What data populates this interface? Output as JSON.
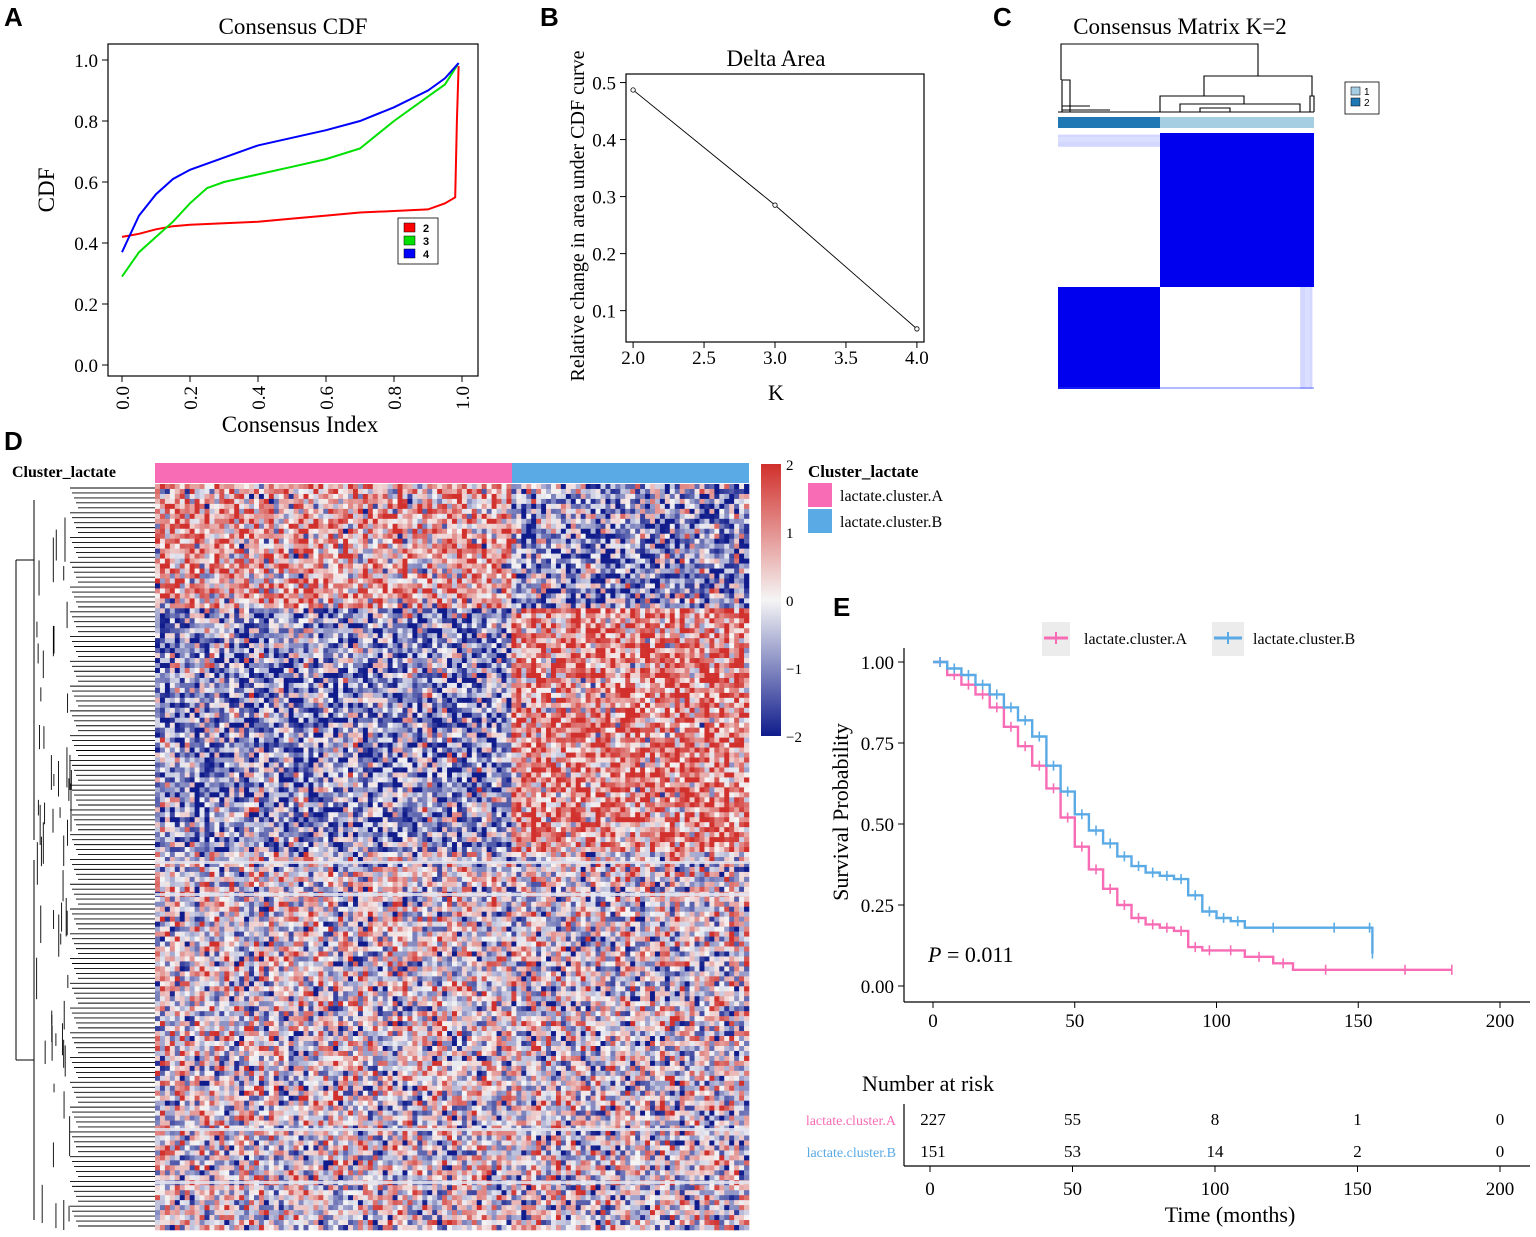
{
  "panels": {
    "A": {
      "letter": "A"
    },
    "B": {
      "letter": "B"
    },
    "C": {
      "letter": "C"
    },
    "D": {
      "letter": "D"
    },
    "E": {
      "letter": "E"
    }
  },
  "colors": {
    "k2": "#ff0000",
    "k3": "#00e000",
    "k4": "#0000ff",
    "cluster_a": "#f76cb5",
    "cluster_b": "#5aaae6",
    "heat_high": "#d1302c",
    "heat_low": "#101c8c",
    "heat_mid": "#f5f5f5",
    "consensus_blue": "#0000ee",
    "c1": "#a6cee3",
    "c2": "#1f78b4"
  },
  "chart_data": [
    {
      "id": "A",
      "type": "line",
      "title": "Consensus CDF",
      "xlabel": "Consensus Index",
      "ylabel": "CDF",
      "xlim": [
        0,
        1
      ],
      "ylim": [
        0,
        1
      ],
      "xticks": [
        "0.0",
        "0.2",
        "0.4",
        "0.6",
        "0.8",
        "1.0"
      ],
      "yticks": [
        "0.0",
        "0.2",
        "0.4",
        "0.6",
        "0.8",
        "1.0"
      ],
      "legend": {
        "position": "right",
        "labels": [
          "2",
          "3",
          "4"
        ]
      },
      "series": [
        {
          "name": "2",
          "color": "#ff0000",
          "x": [
            0.0,
            0.05,
            0.1,
            0.15,
            0.2,
            0.3,
            0.4,
            0.5,
            0.6,
            0.7,
            0.8,
            0.9,
            0.95,
            0.98,
            0.985,
            0.99
          ],
          "y": [
            0.42,
            0.43,
            0.445,
            0.455,
            0.46,
            0.465,
            0.47,
            0.48,
            0.49,
            0.5,
            0.505,
            0.51,
            0.53,
            0.55,
            0.8,
            0.98
          ]
        },
        {
          "name": "3",
          "color": "#00e000",
          "x": [
            0.0,
            0.05,
            0.1,
            0.15,
            0.2,
            0.25,
            0.3,
            0.4,
            0.5,
            0.6,
            0.7,
            0.8,
            0.9,
            0.95,
            0.99
          ],
          "y": [
            0.29,
            0.37,
            0.42,
            0.47,
            0.53,
            0.58,
            0.6,
            0.625,
            0.65,
            0.675,
            0.71,
            0.8,
            0.88,
            0.92,
            0.99
          ]
        },
        {
          "name": "4",
          "color": "#0000ff",
          "x": [
            0.0,
            0.05,
            0.1,
            0.15,
            0.2,
            0.3,
            0.4,
            0.5,
            0.6,
            0.7,
            0.8,
            0.9,
            0.95,
            0.99
          ],
          "y": [
            0.37,
            0.49,
            0.56,
            0.61,
            0.64,
            0.68,
            0.72,
            0.745,
            0.77,
            0.8,
            0.845,
            0.9,
            0.94,
            0.99
          ]
        }
      ]
    },
    {
      "id": "B",
      "type": "line",
      "title": "Delta Area",
      "xlabel": "K",
      "ylabel": "Relative change in area under CDF curve",
      "xlim": [
        1.95,
        4.05
      ],
      "ylim": [
        0.045,
        0.515
      ],
      "xticks": [
        "2.0",
        "2.5",
        "3.0",
        "3.5",
        "4.0"
      ],
      "yticks": [
        "0.1",
        "0.2",
        "0.3",
        "0.4",
        "0.5"
      ],
      "series": [
        {
          "name": "delta",
          "x": [
            2,
            3,
            4
          ],
          "y": [
            0.487,
            0.285,
            0.068
          ]
        }
      ]
    },
    {
      "id": "C",
      "type": "heatmap",
      "title": "Consensus Matrix K=2",
      "legend": [
        "1",
        "2"
      ],
      "clusters": [
        {
          "label": "2",
          "share": 0.4
        },
        {
          "label": "1",
          "share": 0.6
        }
      ]
    },
    {
      "id": "D",
      "type": "heatmap",
      "annotation_title": "Cluster_lactate",
      "legend_title": "Cluster_lactate",
      "groups": [
        {
          "label": "lactate.cluster.A",
          "share": 0.6
        },
        {
          "label": "lactate.cluster.B",
          "share": 0.4
        }
      ],
      "scale": {
        "min": -2,
        "max": 2,
        "ticks": [
          "2",
          "1",
          "0",
          "−1",
          "−2"
        ]
      }
    },
    {
      "id": "E",
      "type": "line",
      "xlabel": "Time (months)",
      "ylabel": "Survival Probability",
      "xlim": [
        0,
        200
      ],
      "ylim": [
        0,
        1
      ],
      "xticks": [
        "0",
        "50",
        "100",
        "150",
        "200"
      ],
      "yticks": [
        "0.00",
        "0.25",
        "0.50",
        "0.75",
        "1.00"
      ],
      "pvalue_label": "P",
      "pvalue_text": " = 0.011",
      "series": [
        {
          "name": "lactate.cluster.A",
          "color": "#f76cb5",
          "x": [
            0,
            5,
            10,
            15,
            20,
            25,
            30,
            35,
            40,
            45,
            50,
            55,
            60,
            65,
            70,
            75,
            80,
            85,
            90,
            95,
            100,
            110,
            120,
            127,
            150,
            183
          ],
          "y": [
            1.0,
            0.96,
            0.93,
            0.9,
            0.86,
            0.8,
            0.74,
            0.68,
            0.61,
            0.52,
            0.43,
            0.36,
            0.3,
            0.25,
            0.21,
            0.19,
            0.18,
            0.17,
            0.12,
            0.11,
            0.11,
            0.09,
            0.07,
            0.05,
            0.05,
            0.05
          ]
        },
        {
          "name": "lactate.cluster.B",
          "color": "#5aaae6",
          "x": [
            0,
            5,
            10,
            15,
            20,
            25,
            30,
            35,
            40,
            45,
            50,
            55,
            60,
            65,
            70,
            75,
            80,
            85,
            90,
            95,
            100,
            105,
            110,
            130,
            153,
            155
          ],
          "y": [
            1.0,
            0.98,
            0.96,
            0.93,
            0.9,
            0.86,
            0.82,
            0.77,
            0.68,
            0.6,
            0.53,
            0.48,
            0.44,
            0.4,
            0.37,
            0.35,
            0.34,
            0.33,
            0.28,
            0.23,
            0.21,
            0.2,
            0.18,
            0.18,
            0.18,
            0.1
          ]
        }
      ],
      "risk_table": {
        "title": "Number at risk",
        "times": [
          "0",
          "50",
          "100",
          "150",
          "200"
        ],
        "rows": [
          {
            "label": "lactate.cluster.A",
            "values": [
              "227",
              "55",
              "8",
              "1",
              "0"
            ]
          },
          {
            "label": "lactate.cluster.B",
            "values": [
              "151",
              "53",
              "14",
              "2",
              "0"
            ]
          }
        ]
      }
    }
  ]
}
